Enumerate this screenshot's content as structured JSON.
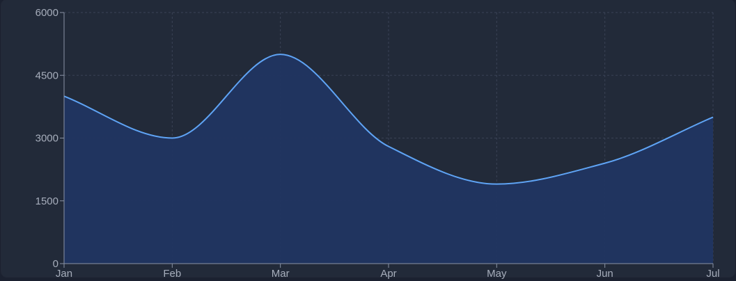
{
  "chart_data": {
    "type": "area",
    "categories": [
      "Jan",
      "Feb",
      "Mar",
      "Apr",
      "May",
      "Jun",
      "Jul"
    ],
    "series": [
      {
        "values": [
          4000,
          3000,
          5000,
          2800,
          1900,
          2400,
          3500
        ]
      }
    ],
    "y_ticks": [
      "0",
      "1500",
      "3000",
      "4500",
      "6000"
    ],
    "ylim": [
      0,
      6000
    ],
    "grid": true,
    "colors": {
      "line": "#5fa4f5",
      "fill": "#213561",
      "grid": "#3a4356",
      "axis": "#8a93a5",
      "background": "#222a39"
    }
  }
}
